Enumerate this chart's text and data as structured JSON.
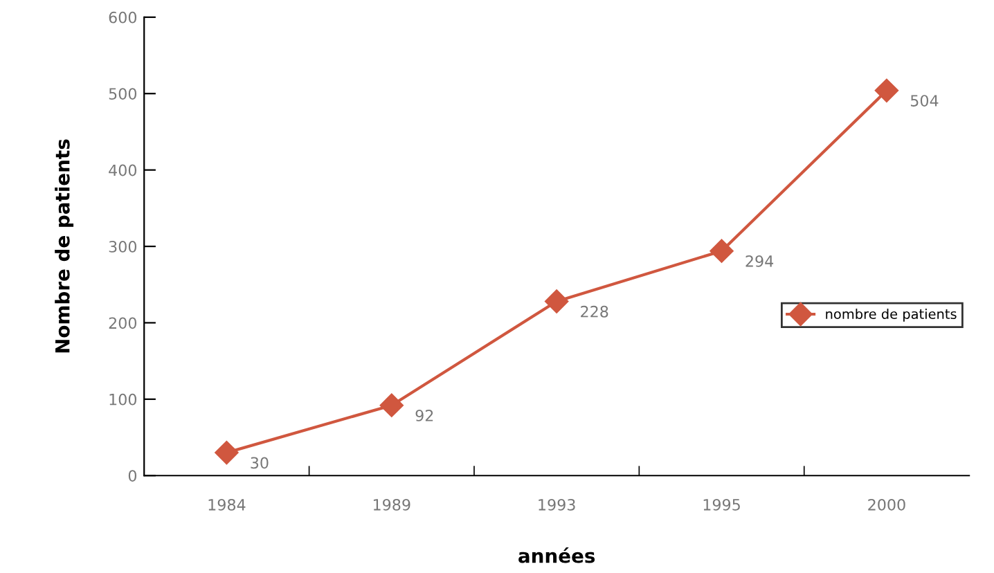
{
  "chart_data": {
    "type": "line",
    "xlabel": "années",
    "ylabel": "Nombre de patients",
    "categories": [
      "1984",
      "1989",
      "1993",
      "1995",
      "2000"
    ],
    "series": [
      {
        "name": "nombre de patients",
        "color": "#d0573f",
        "values": [
          30,
          92,
          228,
          294,
          504
        ]
      }
    ],
    "ylim": [
      0,
      600
    ],
    "yticks": [
      0,
      100,
      200,
      300,
      400,
      500,
      600
    ],
    "data_labels": true,
    "marker": "diamond",
    "line_style": "solid",
    "legend": "right",
    "grid": false
  }
}
